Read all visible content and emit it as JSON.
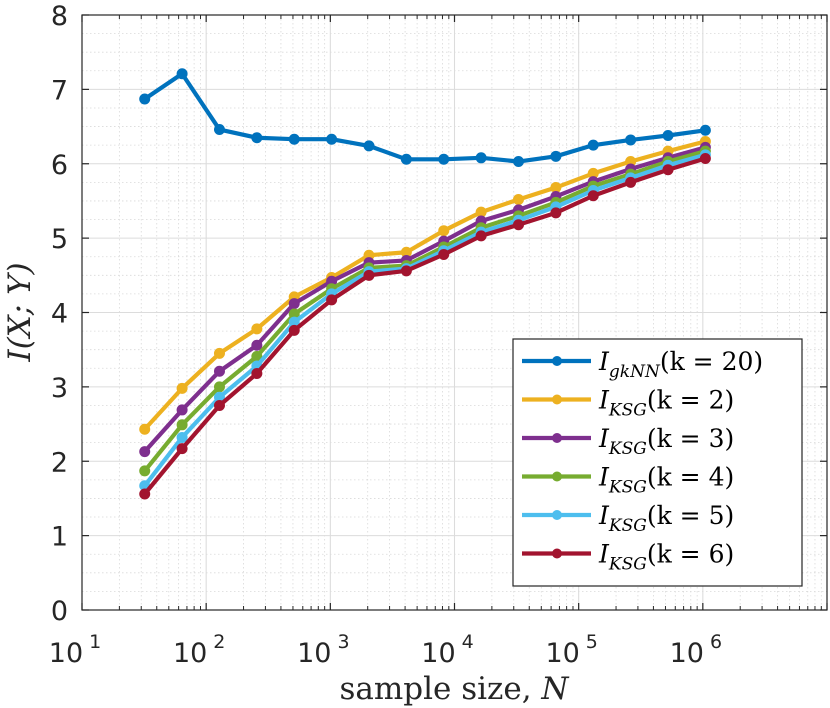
{
  "chart_data": {
    "type": "line",
    "title": "",
    "xlabel_main": "sample size, ",
    "xlabel_var": "N",
    "ylabel": "I(X; Y)",
    "xscale": "log",
    "xlim": [
      10,
      10000000
    ],
    "ylim": [
      0,
      8
    ],
    "grid": true,
    "legend_position": "bottom-right",
    "x_ticks": [
      {
        "base": "10",
        "exp": "1",
        "value": 10
      },
      {
        "base": "10",
        "exp": "2",
        "value": 100
      },
      {
        "base": "10",
        "exp": "3",
        "value": 1000
      },
      {
        "base": "10",
        "exp": "4",
        "value": 10000
      },
      {
        "base": "10",
        "exp": "5",
        "value": 100000
      },
      {
        "base": "10",
        "exp": "6",
        "value": 1000000
      }
    ],
    "y_ticks": [
      "0",
      "1",
      "2",
      "3",
      "4",
      "5",
      "6",
      "7",
      "8"
    ],
    "x": [
      32,
      64,
      128,
      256,
      512,
      1024,
      2048,
      4096,
      8192,
      16384,
      32768,
      65536,
      131072,
      262144,
      524288,
      1048576
    ],
    "series": [
      {
        "name": "I_gkNN(k = 20)",
        "main": "I",
        "sub": "gkNN",
        "paren": "(k = 20)",
        "color": "#0072BD",
        "values": [
          6.87,
          7.21,
          6.46,
          6.35,
          6.33,
          6.33,
          6.24,
          6.06,
          6.06,
          6.08,
          6.03,
          6.1,
          6.25,
          6.32,
          6.38,
          6.45
        ]
      },
      {
        "name": "I_KSG(k = 2)",
        "main": "I",
        "sub": "KSG",
        "paren": "(k = 2)",
        "color": "#EDB120",
        "values": [
          2.43,
          2.98,
          3.45,
          3.78,
          4.21,
          4.47,
          4.77,
          4.81,
          5.1,
          5.35,
          5.52,
          5.68,
          5.87,
          6.03,
          6.17,
          6.3
        ]
      },
      {
        "name": "I_KSG(k = 3)",
        "main": "I",
        "sub": "KSG",
        "paren": "(k = 3)",
        "color": "#7E2F8E",
        "values": [
          2.13,
          2.69,
          3.21,
          3.56,
          4.12,
          4.42,
          4.67,
          4.7,
          4.96,
          5.23,
          5.38,
          5.56,
          5.76,
          5.93,
          6.08,
          6.22
        ]
      },
      {
        "name": "I_KSG(k = 4)",
        "main": "I",
        "sub": "KSG",
        "paren": "(k = 4)",
        "color": "#77AC30",
        "values": [
          1.87,
          2.49,
          3.0,
          3.41,
          3.98,
          4.32,
          4.6,
          4.63,
          4.88,
          5.14,
          5.3,
          5.48,
          5.7,
          5.86,
          6.03,
          6.17
        ]
      },
      {
        "name": "I_KSG(k = 5)",
        "main": "I",
        "sub": "KSG",
        "paren": "(k = 5)",
        "color": "#4DBEEE",
        "values": [
          1.67,
          2.32,
          2.86,
          3.28,
          3.87,
          4.25,
          4.55,
          4.59,
          4.83,
          5.08,
          5.24,
          5.42,
          5.64,
          5.81,
          5.98,
          6.12
        ]
      },
      {
        "name": "I_KSG(k = 6)",
        "main": "I",
        "sub": "KSG",
        "paren": "(k = 6)",
        "color": "#A2142F",
        "values": [
          1.56,
          2.17,
          2.75,
          3.18,
          3.76,
          4.17,
          4.5,
          4.56,
          4.78,
          5.03,
          5.18,
          5.34,
          5.57,
          5.75,
          5.92,
          6.07
        ]
      }
    ]
  }
}
